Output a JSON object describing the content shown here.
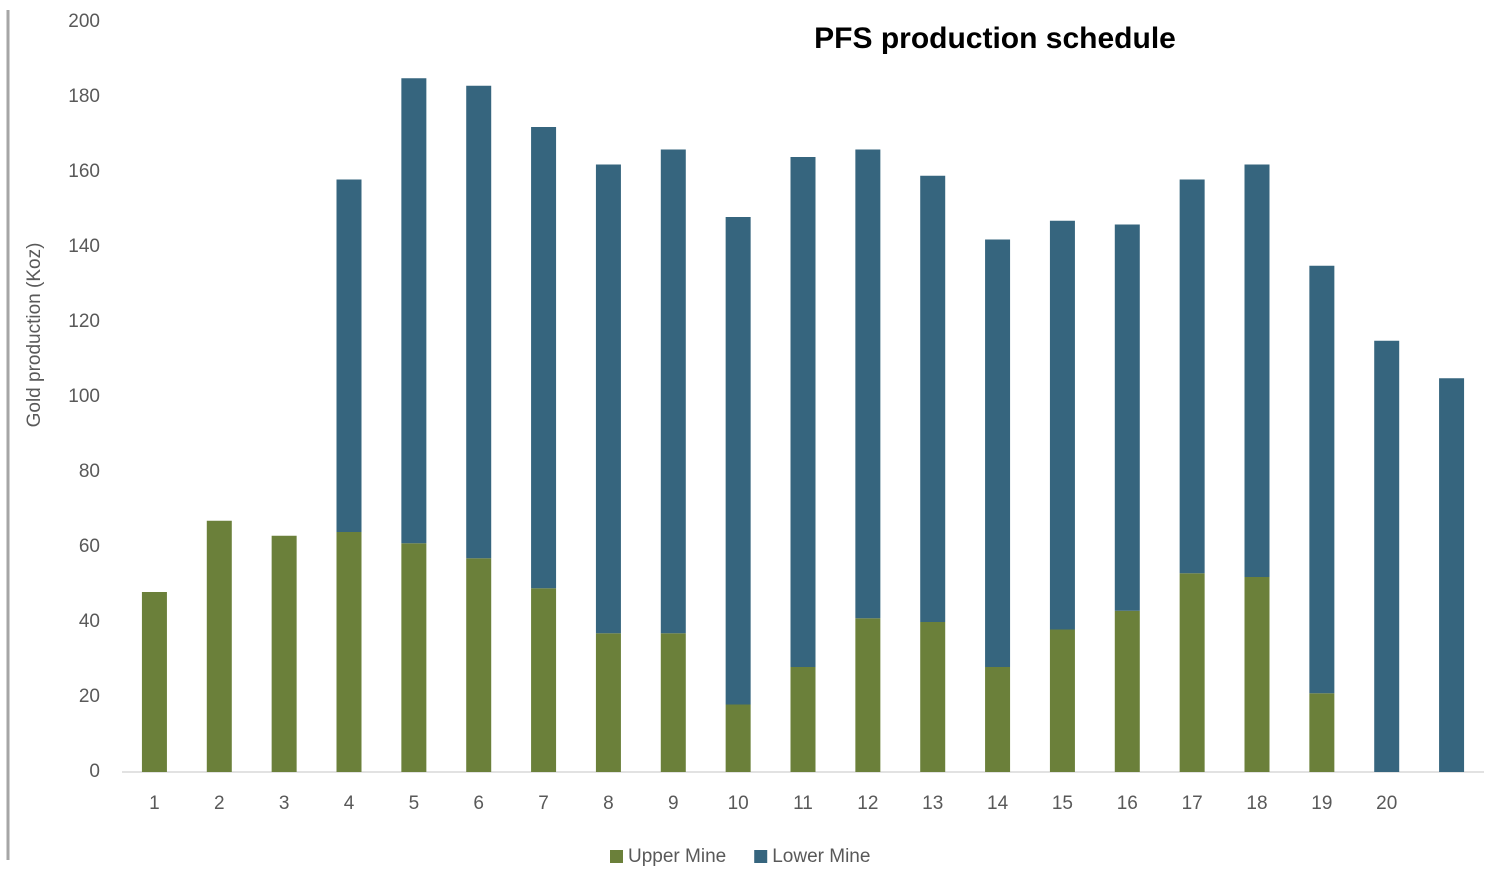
{
  "chart_data": {
    "type": "stacked_bar",
    "title": "PFS production schedule",
    "y_label": "Gold production (Koz)",
    "categories": [
      "1",
      "2",
      "3",
      "4",
      "5",
      "6",
      "7",
      "8",
      "9",
      "10",
      "11",
      "12",
      "13",
      "14",
      "15",
      "16",
      "17",
      "18",
      "19",
      "20",
      null
    ],
    "series": [
      {
        "name": "Upper Mine",
        "color": "#6b803a",
        "values": [
          48,
          67,
          63,
          64,
          61,
          57,
          49,
          37,
          37,
          18,
          28,
          41,
          40,
          28,
          38,
          43,
          53,
          52,
          21,
          0,
          0
        ]
      },
      {
        "name": "Lower Mine",
        "color": "#36657e",
        "values": [
          0,
          0,
          0,
          94,
          124,
          126,
          123,
          125,
          129,
          130,
          136,
          125,
          119,
          114,
          109,
          103,
          105,
          110,
          114,
          115,
          105
        ]
      }
    ],
    "ylim": [
      0,
      200
    ],
    "yticks": [
      0,
      20,
      40,
      60,
      80,
      100,
      120,
      140,
      160,
      180,
      200
    ],
    "legend": "bottom"
  }
}
